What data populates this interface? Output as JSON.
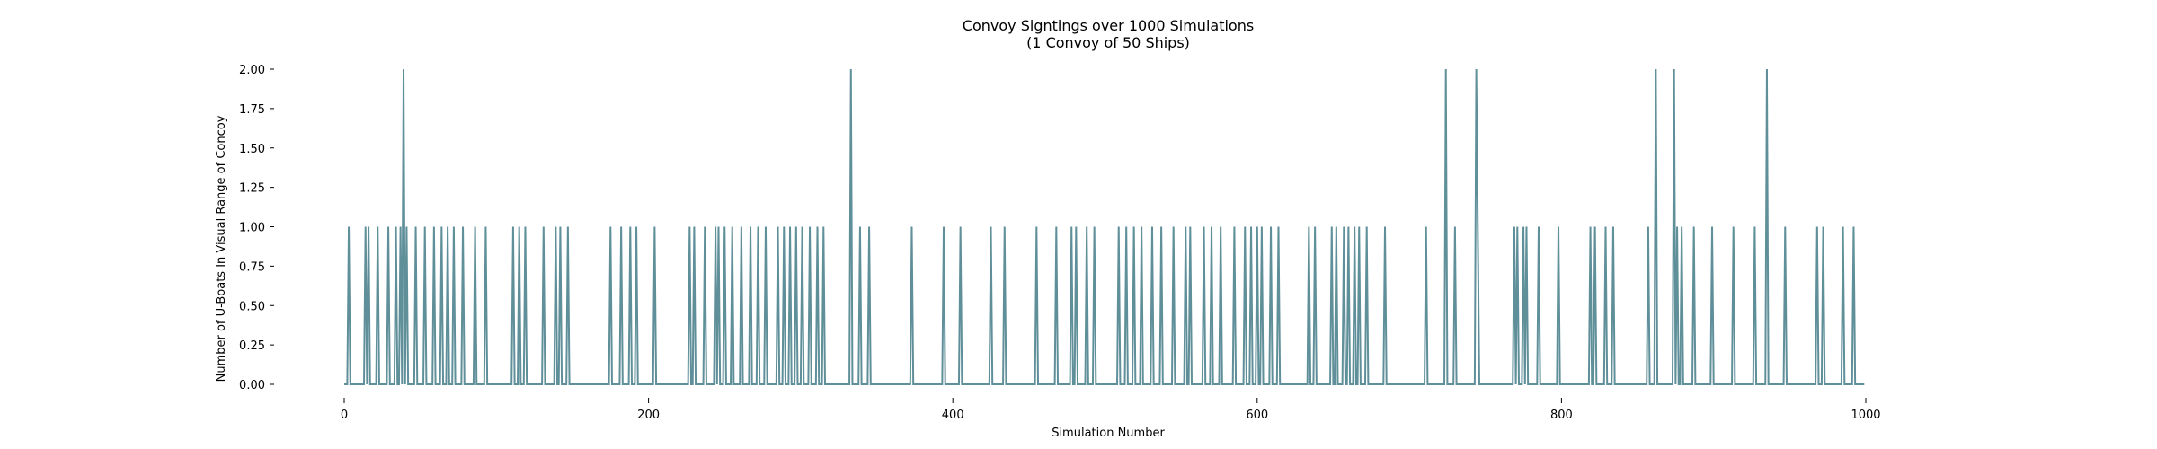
{
  "chart_data": {
    "type": "line",
    "title": "Convoy Signtings over 1000 Simulations",
    "subtitle": "(1 Convoy of 50 Ships)",
    "xlabel": "Simulation Number",
    "ylabel": "Number of U-Boats In Visual Range of Concoy",
    "xlim": [
      0,
      1000
    ],
    "ylim": [
      0,
      2
    ],
    "x_ticks": [
      0,
      200,
      400,
      600,
      800,
      1000
    ],
    "x_tick_labels": [
      "0",
      "200",
      "400",
      "600",
      "800",
      "1000"
    ],
    "y_ticks": [
      0,
      0.25,
      0.5,
      0.75,
      1.0,
      1.25,
      1.5,
      1.75,
      2.0
    ],
    "y_tick_labels": [
      "0.00",
      "0.25",
      "0.50",
      "0.75",
      "1.00",
      "1.25",
      "1.50",
      "1.75",
      "2.00"
    ],
    "grid": false,
    "color": "#5f8f99",
    "series": [
      {
        "n": 1000,
        "baseline": 0,
        "nonzero": [
          [
            3,
            1
          ],
          [
            14,
            1
          ],
          [
            16,
            1
          ],
          [
            22,
            1
          ],
          [
            29,
            1
          ],
          [
            34,
            1
          ],
          [
            37,
            1
          ],
          [
            39,
            2
          ],
          [
            41,
            1
          ],
          [
            47,
            1
          ],
          [
            53,
            1
          ],
          [
            59,
            1
          ],
          [
            64,
            1
          ],
          [
            68,
            1
          ],
          [
            72,
            1
          ],
          [
            78,
            1
          ],
          [
            86,
            1
          ],
          [
            93,
            1
          ],
          [
            111,
            1
          ],
          [
            115,
            1
          ],
          [
            119,
            1
          ],
          [
            131,
            1
          ],
          [
            139,
            1
          ],
          [
            142,
            1
          ],
          [
            147,
            1
          ],
          [
            175,
            1
          ],
          [
            182,
            1
          ],
          [
            188,
            1
          ],
          [
            192,
            1
          ],
          [
            204,
            1
          ],
          [
            227,
            1
          ],
          [
            230,
            1
          ],
          [
            237,
            1
          ],
          [
            244,
            1
          ],
          [
            246,
            1
          ],
          [
            250,
            1
          ],
          [
            255,
            1
          ],
          [
            261,
            1
          ],
          [
            267,
            1
          ],
          [
            272,
            1
          ],
          [
            277,
            1
          ],
          [
            285,
            1
          ],
          [
            289,
            1
          ],
          [
            293,
            1
          ],
          [
            297,
            1
          ],
          [
            301,
            1
          ],
          [
            306,
            1
          ],
          [
            311,
            1
          ],
          [
            315,
            1
          ],
          [
            333,
            2
          ],
          [
            339,
            1
          ],
          [
            345,
            1
          ],
          [
            373,
            1
          ],
          [
            394,
            1
          ],
          [
            405,
            1
          ],
          [
            425,
            1
          ],
          [
            434,
            1
          ],
          [
            455,
            1
          ],
          [
            468,
            1
          ],
          [
            478,
            1
          ],
          [
            481,
            1
          ],
          [
            488,
            1
          ],
          [
            493,
            1
          ],
          [
            509,
            1
          ],
          [
            514,
            1
          ],
          [
            519,
            1
          ],
          [
            524,
            1
          ],
          [
            531,
            1
          ],
          [
            537,
            1
          ],
          [
            545,
            1
          ],
          [
            553,
            1
          ],
          [
            556,
            1
          ],
          [
            565,
            1
          ],
          [
            570,
            1
          ],
          [
            576,
            1
          ],
          [
            585,
            1
          ],
          [
            592,
            1
          ],
          [
            596,
            1
          ],
          [
            600,
            1
          ],
          [
            603,
            1
          ],
          [
            609,
            1
          ],
          [
            614,
            1
          ],
          [
            634,
            1
          ],
          [
            638,
            1
          ],
          [
            649,
            1
          ],
          [
            652,
            1
          ],
          [
            657,
            1
          ],
          [
            660,
            1
          ],
          [
            664,
            1
          ],
          [
            667,
            1
          ],
          [
            672,
            1
          ],
          [
            684,
            1
          ],
          [
            711,
            1
          ],
          [
            724,
            2
          ],
          [
            730,
            1
          ],
          [
            744,
            2
          ],
          [
            745,
            1
          ],
          [
            769,
            1
          ],
          [
            771,
            1
          ],
          [
            775,
            1
          ],
          [
            777,
            1
          ],
          [
            785,
            1
          ],
          [
            798,
            1
          ],
          [
            819,
            1
          ],
          [
            822,
            1
          ],
          [
            829,
            1
          ],
          [
            834,
            1
          ],
          [
            857,
            1
          ],
          [
            862,
            2
          ],
          [
            874,
            2
          ],
          [
            876,
            1
          ],
          [
            879,
            1
          ],
          [
            887,
            1
          ],
          [
            899,
            1
          ],
          [
            913,
            1
          ],
          [
            927,
            1
          ],
          [
            935,
            2
          ],
          [
            947,
            1
          ],
          [
            968,
            1
          ],
          [
            972,
            1
          ],
          [
            985,
            1
          ],
          [
            992,
            1
          ]
        ]
      }
    ]
  }
}
